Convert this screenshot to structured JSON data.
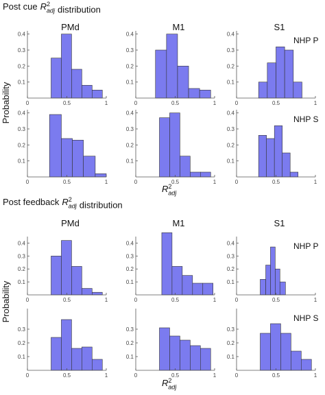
{
  "figure": {
    "sections": [
      {
        "title": {
          "lead": "Post cue",
          "base": "R",
          "sup": "2",
          "sub": "adj",
          "tail": "distribution"
        },
        "columns": [
          "PMd",
          "M1",
          "S1"
        ],
        "rows": [
          "NHP P",
          "NHP S"
        ],
        "ylabel": "Probability",
        "xlabel": {
          "base": "R",
          "sup": "2",
          "sub": "adj"
        }
      },
      {
        "title": {
          "lead": "Post feedback",
          "base": "R",
          "sup": "2",
          "sub": "adj",
          "tail": "distribution"
        },
        "columns": [
          "PMd",
          "M1",
          "S1"
        ],
        "rows": [
          "NHP P",
          "NHP S"
        ],
        "ylabel": "Probability",
        "xlabel": {
          "base": "R",
          "sup": "2",
          "sub": "adj"
        }
      }
    ]
  },
  "chart_data": [
    {
      "type": "histogram",
      "color": "#7b7bef",
      "bins": [
        0.3,
        0.43,
        0.56,
        0.69,
        0.82,
        0.95
      ],
      "values": [
        0.25,
        0.4,
        0.18,
        0.08,
        0.05
      ],
      "xlim": [
        0,
        1
      ],
      "ylim": [
        0,
        0.42
      ],
      "xticks": [
        0,
        0.5,
        1
      ],
      "yticks": [
        0.1,
        0.2,
        0.3,
        0.4
      ]
    },
    {
      "type": "histogram",
      "color": "#7b7bef",
      "bins": [
        0.25,
        0.39,
        0.53,
        0.67,
        0.81,
        0.95
      ],
      "values": [
        0.3,
        0.4,
        0.2,
        0.06,
        0.05
      ],
      "xlim": [
        0,
        1
      ],
      "ylim": [
        0,
        0.42
      ],
      "xticks": [
        0,
        0.5,
        1
      ],
      "yticks": [
        0.1,
        0.2,
        0.3,
        0.4
      ]
    },
    {
      "type": "histogram",
      "color": "#7b7bef",
      "bins": [
        0.28,
        0.39,
        0.5,
        0.61,
        0.72,
        0.83
      ],
      "values": [
        0.1,
        0.22,
        0.32,
        0.3,
        0.1
      ],
      "xlim": [
        0,
        1
      ],
      "ylim": [
        0,
        0.42
      ],
      "xticks": [
        0,
        0.5,
        1
      ],
      "yticks": [
        0.1,
        0.2,
        0.3,
        0.4
      ]
    },
    {
      "type": "histogram",
      "color": "#7b7bef",
      "bins": [
        0.28,
        0.43,
        0.57,
        0.71,
        0.86,
        1.0
      ],
      "values": [
        0.39,
        0.24,
        0.23,
        0.13,
        0.02
      ],
      "xlim": [
        0,
        1
      ],
      "ylim": [
        0,
        0.42
      ],
      "xticks": [
        0,
        0.5,
        1
      ],
      "yticks": [
        0.1,
        0.2,
        0.3,
        0.4
      ]
    },
    {
      "type": "histogram",
      "color": "#7b7bef",
      "bins": [
        0.3,
        0.43,
        0.56,
        0.69,
        0.82,
        0.95
      ],
      "values": [
        0.37,
        0.4,
        0.13,
        0.03,
        0.03
      ],
      "xlim": [
        0,
        1
      ],
      "ylim": [
        0,
        0.42
      ],
      "xticks": [
        0,
        0.5,
        1
      ],
      "yticks": [
        0.1,
        0.2,
        0.3,
        0.4
      ]
    },
    {
      "type": "histogram",
      "color": "#7b7bef",
      "bins": [
        0.28,
        0.38,
        0.48,
        0.58,
        0.68,
        0.78
      ],
      "values": [
        0.26,
        0.24,
        0.32,
        0.15,
        0.03
      ],
      "xlim": [
        0,
        1
      ],
      "ylim": [
        0,
        0.42
      ],
      "xticks": [
        0,
        0.5,
        1
      ],
      "yticks": [
        0.1,
        0.2,
        0.3,
        0.4
      ]
    },
    {
      "type": "histogram",
      "color": "#7b7bef",
      "bins": [
        0.3,
        0.43,
        0.56,
        0.69,
        0.82,
        0.95
      ],
      "values": [
        0.3,
        0.42,
        0.22,
        0.05,
        0.02
      ],
      "xlim": [
        0,
        1
      ],
      "ylim": [
        0,
        0.45
      ],
      "xticks": [
        0,
        0.5,
        1
      ],
      "yticks": [
        0.1,
        0.2,
        0.3,
        0.4
      ]
    },
    {
      "type": "histogram",
      "color": "#7b7bef",
      "bins": [
        0.33,
        0.46,
        0.59,
        0.72,
        0.85,
        0.98
      ],
      "values": [
        0.48,
        0.22,
        0.15,
        0.09,
        0.09
      ],
      "xlim": [
        0,
        1
      ],
      "ylim": [
        0,
        0.45
      ],
      "xticks": [
        0,
        0.5,
        1
      ],
      "yticks": [
        0.1,
        0.2,
        0.3,
        0.4
      ]
    },
    {
      "type": "histogram",
      "color": "#7b7bef",
      "bins": [
        0.3,
        0.37,
        0.43,
        0.49,
        0.55,
        0.62
      ],
      "values": [
        0.12,
        0.23,
        0.37,
        0.2,
        0.1
      ],
      "xlim": [
        0,
        1
      ],
      "ylim": [
        0,
        0.45
      ],
      "xticks": [
        0,
        0.5,
        1
      ],
      "yticks": [
        0.1,
        0.2,
        0.3,
        0.4
      ]
    },
    {
      "type": "histogram",
      "color": "#7b7bef",
      "bins": [
        0.3,
        0.43,
        0.56,
        0.69,
        0.82,
        0.95
      ],
      "values": [
        0.24,
        0.37,
        0.16,
        0.17,
        0.08
      ],
      "xlim": [
        0,
        1
      ],
      "ylim": [
        0,
        0.45
      ],
      "xticks": [
        0,
        0.5,
        1
      ],
      "yticks": [
        0.1,
        0.2,
        0.3
      ]
    },
    {
      "type": "histogram",
      "color": "#7b7bef",
      "bins": [
        0.3,
        0.43,
        0.56,
        0.69,
        0.82,
        0.95
      ],
      "values": [
        0.31,
        0.25,
        0.22,
        0.18,
        0.16
      ],
      "xlim": [
        0,
        1
      ],
      "ylim": [
        0,
        0.45
      ],
      "xticks": [
        0,
        0.5,
        1
      ],
      "yticks": [
        0.1,
        0.2,
        0.3
      ]
    },
    {
      "type": "histogram",
      "color": "#7b7bef",
      "bins": [
        0.3,
        0.43,
        0.56,
        0.69,
        0.82,
        0.95
      ],
      "values": [
        0.27,
        0.34,
        0.27,
        0.14,
        0.08
      ],
      "xlim": [
        0,
        1
      ],
      "ylim": [
        0,
        0.45
      ],
      "xticks": [
        0,
        0.5,
        1
      ],
      "yticks": [
        0.1,
        0.2,
        0.3
      ]
    }
  ]
}
